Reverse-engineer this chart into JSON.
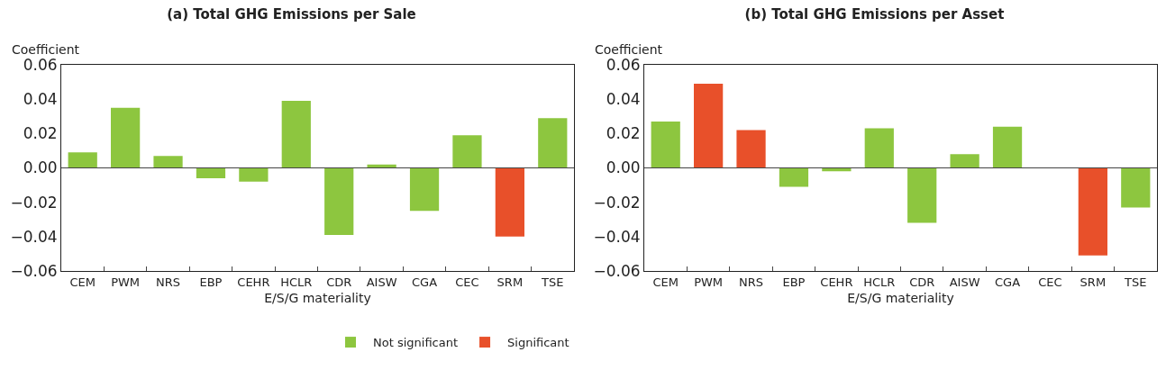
{
  "chart_data": [
    {
      "type": "bar",
      "title": "(a) Total GHG Emissions per Sale",
      "xlabel": "E/S/G materiality",
      "ylabel": "Coefficient",
      "categories": [
        "CEM",
        "PWM",
        "NRS",
        "EBP",
        "CEHR",
        "HCLR",
        "CDR",
        "AISW",
        "CGA",
        "CEC",
        "SRM",
        "TSE"
      ],
      "series": [
        {
          "name": "Not significant",
          "color": "#8dc63f",
          "values": [
            0.009,
            0.035,
            0.007,
            -0.006,
            -0.008,
            0.039,
            -0.039,
            0.002,
            -0.025,
            0.019,
            null,
            0.029
          ]
        },
        {
          "name": "Significant",
          "color": "#e8502a",
          "values": [
            null,
            null,
            null,
            null,
            null,
            null,
            null,
            null,
            null,
            null,
            -0.04,
            null
          ]
        }
      ],
      "ylim": [
        -0.06,
        0.06
      ],
      "yticks": [
        {
          "value": -0.06,
          "label": "−0.06"
        },
        {
          "value": -0.04,
          "label": "−0.04"
        },
        {
          "value": -0.02,
          "label": "−0.02"
        },
        {
          "value": 0,
          "label": "0.00"
        },
        {
          "value": 0.02,
          "label": "0.02"
        },
        {
          "value": 0.04,
          "label": "0.04"
        },
        {
          "value": 0.06,
          "label": "0.06"
        }
      ],
      "ref_lines": [
        {
          "axis": "y",
          "value": 0,
          "color": "#444444"
        }
      ],
      "legend": "bottom right"
    },
    {
      "type": "bar",
      "title": "(b) Total GHG Emissions per Asset",
      "xlabel": "E/S/G materiality",
      "ylabel": "Coefficient",
      "categories": [
        "CEM",
        "PWM",
        "NRS",
        "EBP",
        "CEHR",
        "HCLR",
        "CDR",
        "AISW",
        "CGA",
        "CEC",
        "SRM",
        "TSE"
      ],
      "series": [
        {
          "color": "#8dc63f",
          "values": [
            0.027,
            null,
            null,
            -0.011,
            -0.002,
            0.023,
            -0.032,
            0.008,
            0.024,
            0,
            null,
            -0.023
          ]
        },
        {
          "color": "#e8502a",
          "values": [
            null,
            0.049,
            0.022,
            null,
            null,
            null,
            null,
            null,
            null,
            null,
            -0.051,
            null
          ]
        }
      ],
      "ylim": [
        -0.06,
        0.06
      ],
      "yticks": [
        {
          "value": -0.06,
          "label": "−0.06"
        },
        {
          "value": -0.04,
          "label": "−0.04"
        },
        {
          "value": -0.02,
          "label": "−0.02"
        },
        {
          "value": 0,
          "label": "0.00"
        },
        {
          "value": 0.02,
          "label": "0.02"
        },
        {
          "value": 0.04,
          "label": "0.04"
        },
        {
          "value": 0.06,
          "label": "0.06"
        }
      ],
      "ref_lines": [
        {
          "axis": "y",
          "value": 0,
          "color": "#444444"
        }
      ]
    }
  ]
}
